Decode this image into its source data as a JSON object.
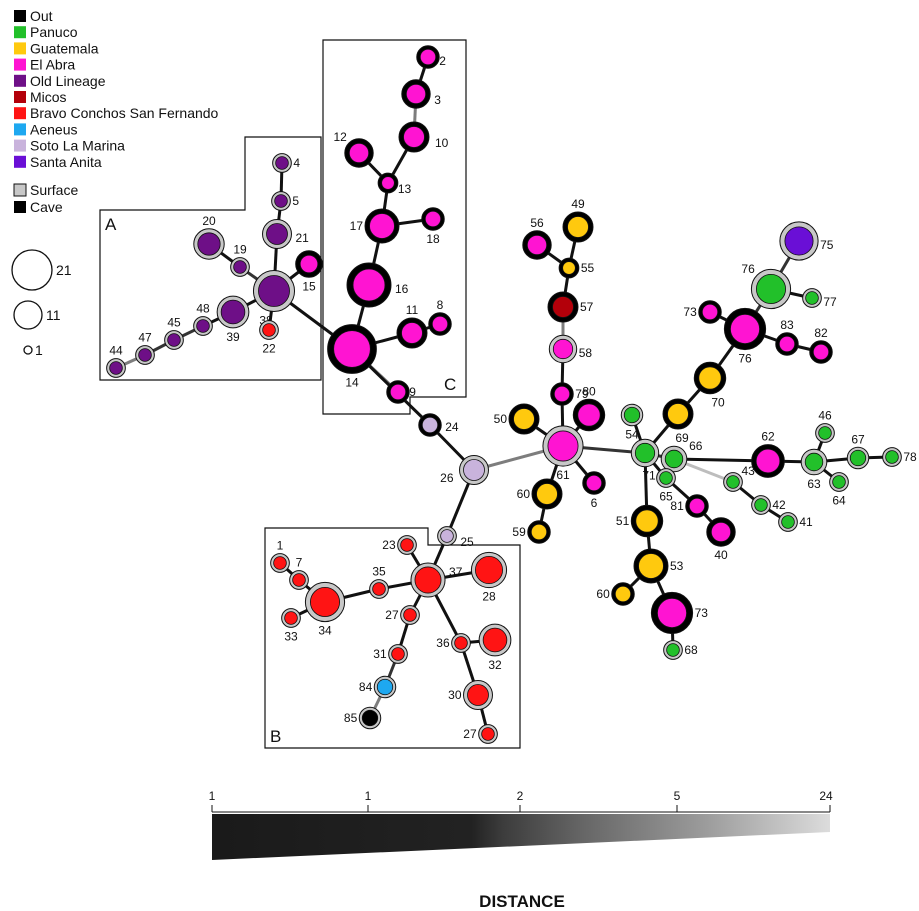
{
  "legend": {
    "lineages": [
      {
        "name": "Out",
        "color": "#000000"
      },
      {
        "name": "Panuco",
        "color": "#22c02a"
      },
      {
        "name": "Guatemala",
        "color": "#ffc90e"
      },
      {
        "name": "El Abra",
        "color": "#ff14d2"
      },
      {
        "name": "Old Lineage",
        "color": "#6e0f87"
      },
      {
        "name": "Micos",
        "color": "#b3000a"
      },
      {
        "name": "Bravo  Conchos San Fernando",
        "color": "#ff1414"
      },
      {
        "name": "Aeneus",
        "color": "#1ea8f0"
      },
      {
        "name": "Soto  La  Marina",
        "color": "#c9b3dc"
      },
      {
        "name": "Santa  Anita",
        "color": "#6a0fd6"
      }
    ],
    "habitat": [
      {
        "name": "Surface",
        "color": "#c8c8c8"
      },
      {
        "name": "Cave",
        "color": "#000000"
      }
    ],
    "sizes": [
      {
        "label": "21",
        "value": 21
      },
      {
        "label": "11",
        "value": 11
      },
      {
        "label": "1",
        "value": 1
      }
    ]
  },
  "regions": [
    {
      "label": "A"
    },
    {
      "label": "B"
    },
    {
      "label": "C"
    }
  ],
  "scale": {
    "ticks": [
      "1",
      "1",
      "2",
      "5",
      "24"
    ],
    "title": "DISTANCE"
  },
  "network": {
    "nodes": [
      {
        "id": "n2",
        "label": "2",
        "ring": "cave",
        "fill": "#ff14d2",
        "size": 2
      },
      {
        "id": "n3",
        "label": "3",
        "ring": "cave",
        "fill": "#ff14d2",
        "size": 4
      },
      {
        "id": "n10",
        "label": "10",
        "ring": "cave",
        "fill": "#ff14d2",
        "size": 5
      },
      {
        "id": "n12",
        "label": "12",
        "ring": "cave",
        "fill": "#ff14d2",
        "size": 4
      },
      {
        "id": "n13",
        "label": "13",
        "ring": "cave",
        "fill": "#ff14d2",
        "size": 1
      },
      {
        "id": "n17",
        "label": "17",
        "ring": "cave",
        "fill": "#ff14d2",
        "size": 8
      },
      {
        "id": "n18",
        "label": "18",
        "ring": "cave",
        "fill": "#ff14d2",
        "size": 2
      },
      {
        "id": "n16",
        "label": "16",
        "ring": "cave",
        "fill": "#ff14d2",
        "size": 15
      },
      {
        "id": "n11",
        "label": "11",
        "ring": "cave",
        "fill": "#ff14d2",
        "size": 5
      },
      {
        "id": "n8",
        "label": "8",
        "ring": "cave",
        "fill": "#ff14d2",
        "size": 2
      },
      {
        "id": "n14",
        "label": "14",
        "ring": "cave",
        "fill": "#ff14d2",
        "size": 21
      },
      {
        "id": "n9",
        "label": "9",
        "ring": "cave",
        "fill": "#ff14d2",
        "size": 2
      },
      {
        "id": "n4",
        "label": "4",
        "ring": "surface",
        "fill": "#6e0f87",
        "size": 1
      },
      {
        "id": "n5",
        "label": "5",
        "ring": "surface",
        "fill": "#6e0f87",
        "size": 1
      },
      {
        "id": "n21",
        "label": "21",
        "ring": "surface",
        "fill": "#6e0f87",
        "size": 5
      },
      {
        "id": "n20",
        "label": "20",
        "ring": "surface",
        "fill": "#6e0f87",
        "size": 6
      },
      {
        "id": "n19",
        "label": "19",
        "ring": "surface",
        "fill": "#6e0f87",
        "size": 1
      },
      {
        "id": "n15",
        "label": "15",
        "ring": "cave",
        "fill": "#ff14d2",
        "size": 3
      },
      {
        "id": "n38",
        "label": "38",
        "ring": "surface",
        "fill": "#6e0f87",
        "size": 14
      },
      {
        "id": "n39",
        "label": "39",
        "ring": "surface",
        "fill": "#6e0f87",
        "size": 7
      },
      {
        "id": "n48",
        "label": "48",
        "ring": "surface",
        "fill": "#6e0f87",
        "size": 1
      },
      {
        "id": "n45",
        "label": "45",
        "ring": "surface",
        "fill": "#6e0f87",
        "size": 1
      },
      {
        "id": "n47",
        "label": "47",
        "ring": "surface",
        "fill": "#6e0f87",
        "size": 1
      },
      {
        "id": "n44",
        "label": "44",
        "ring": "surface",
        "fill": "#6e0f87",
        "size": 1
      },
      {
        "id": "n22",
        "label": "22",
        "ring": "surface",
        "fill": "#ff1414",
        "size": 1
      },
      {
        "id": "n24",
        "label": "24",
        "ring": "cave",
        "fill": "#c9b3dc",
        "size": 2
      },
      {
        "id": "n26",
        "label": "26",
        "ring": "surface",
        "fill": "#c9b3dc",
        "size": 5
      },
      {
        "id": "n25",
        "label": "25",
        "ring": "surface",
        "fill": "#c9b3dc",
        "size": 1
      },
      {
        "id": "n37",
        "label": "37",
        "ring": "surface",
        "fill": "#ff1414",
        "size": 9
      },
      {
        "id": "n23",
        "label": "23",
        "ring": "surface",
        "fill": "#ff1414",
        "size": 1
      },
      {
        "id": "n28",
        "label": "28",
        "ring": "surface",
        "fill": "#ff1414",
        "size": 10
      },
      {
        "id": "n35",
        "label": "35",
        "ring": "surface",
        "fill": "#ff1414",
        "size": 1
      },
      {
        "id": "n34",
        "label": "34",
        "ring": "surface",
        "fill": "#ff1414",
        "size": 12
      },
      {
        "id": "n1",
        "label": "1",
        "ring": "surface",
        "fill": "#ff1414",
        "size": 1
      },
      {
        "id": "n7",
        "label": "7",
        "ring": "surface",
        "fill": "#ff1414",
        "size": 1
      },
      {
        "id": "n33",
        "label": "33",
        "ring": "surface",
        "fill": "#ff1414",
        "size": 1
      },
      {
        "id": "n27a",
        "label": "27",
        "ring": "surface",
        "fill": "#ff1414",
        "size": 1
      },
      {
        "id": "n31",
        "label": "31",
        "ring": "surface",
        "fill": "#ff1414",
        "size": 1
      },
      {
        "id": "n84",
        "label": "84",
        "ring": "surface",
        "fill": "#1ea8f0",
        "size": 2
      },
      {
        "id": "n85",
        "label": "85",
        "ring": "surface",
        "fill": "#000000",
        "size": 2
      },
      {
        "id": "n36",
        "label": "36",
        "ring": "surface",
        "fill": "#ff1414",
        "size": 1
      },
      {
        "id": "n32",
        "label": "32",
        "ring": "surface",
        "fill": "#ff1414",
        "size": 7
      },
      {
        "id": "n30",
        "label": "30",
        "ring": "surface",
        "fill": "#ff1414",
        "size": 5
      },
      {
        "id": "n27b",
        "label": "27",
        "ring": "surface",
        "fill": "#ff1414",
        "size": 1
      },
      {
        "id": "n61",
        "label": "61",
        "ring": "surface",
        "fill": "#ff14d2",
        "size": 13
      },
      {
        "id": "n79",
        "label": "79",
        "ring": "cave",
        "fill": "#ff14d2",
        "size": 2
      },
      {
        "id": "n58",
        "label": "58",
        "ring": "surface",
        "fill": "#ff14d2",
        "size": 4
      },
      {
        "id": "n57",
        "label": "57",
        "ring": "cave",
        "fill": "#b3000a",
        "size": 5
      },
      {
        "id": "n55",
        "label": "55",
        "ring": "cave",
        "fill": "#ffc90e",
        "size": 1
      },
      {
        "id": "n56",
        "label": "56",
        "ring": "cave",
        "fill": "#ff14d2",
        "size": 4
      },
      {
        "id": "n49",
        "label": "49",
        "ring": "cave",
        "fill": "#ffc90e",
        "size": 5
      },
      {
        "id": "n80",
        "label": "80",
        "ring": "cave",
        "fill": "#ff14d2",
        "size": 6
      },
      {
        "id": "n50",
        "label": "50",
        "ring": "cave",
        "fill": "#ffc90e",
        "size": 5
      },
      {
        "id": "n60a",
        "label": "60",
        "ring": "cave",
        "fill": "#ffc90e",
        "size": 5
      },
      {
        "id": "n59",
        "label": "59",
        "ring": "cave",
        "fill": "#ffc90e",
        "size": 2
      },
      {
        "id": "n6",
        "label": "6",
        "ring": "cave",
        "fill": "#ff14d2",
        "size": 2
      },
      {
        "id": "n71",
        "label": "71",
        "ring": "surface",
        "fill": "#22c02a",
        "size": 4
      },
      {
        "id": "n54",
        "label": "54",
        "ring": "surface",
        "fill": "#22c02a",
        "size": 2
      },
      {
        "id": "n69",
        "label": "69",
        "ring": "cave",
        "fill": "#ffc90e",
        "size": 5
      },
      {
        "id": "n70",
        "label": "70",
        "ring": "cave",
        "fill": "#ffc90e",
        "size": 6
      },
      {
        "id": "n76a",
        "label": "76",
        "ring": "cave",
        "fill": "#ff14d2",
        "size": 12
      },
      {
        "id": "n73a",
        "label": "73",
        "ring": "cave",
        "fill": "#ff14d2",
        "size": 2
      },
      {
        "id": "n83",
        "label": "83",
        "ring": "cave",
        "fill": "#ff14d2",
        "size": 2
      },
      {
        "id": "n82",
        "label": "82",
        "ring": "cave",
        "fill": "#ff14d2",
        "size": 2
      },
      {
        "id": "n76b",
        "label": "76",
        "ring": "surface",
        "fill": "#22c02a",
        "size": 12
      },
      {
        "id": "n77",
        "label": "77",
        "ring": "surface",
        "fill": "#22c02a",
        "size": 1
      },
      {
        "id": "n75",
        "label": "75",
        "ring": "surface",
        "fill": "#6a0fd6",
        "size": 11
      },
      {
        "id": "n66",
        "label": "66",
        "ring": "surface",
        "fill": "#22c02a",
        "size": 3
      },
      {
        "id": "n62",
        "label": "62",
        "ring": "cave",
        "fill": "#ff14d2",
        "size": 7
      },
      {
        "id": "n63",
        "label": "63",
        "ring": "surface",
        "fill": "#22c02a",
        "size": 3
      },
      {
        "id": "n46",
        "label": "46",
        "ring": "surface",
        "fill": "#22c02a",
        "size": 1
      },
      {
        "id": "n64",
        "label": "64",
        "ring": "surface",
        "fill": "#22c02a",
        "size": 1
      },
      {
        "id": "n67",
        "label": "67",
        "ring": "surface",
        "fill": "#22c02a",
        "size": 2
      },
      {
        "id": "n78",
        "label": "78",
        "ring": "surface",
        "fill": "#22c02a",
        "size": 1
      },
      {
        "id": "n43",
        "label": "43",
        "ring": "surface",
        "fill": "#22c02a",
        "size": 1
      },
      {
        "id": "n42",
        "label": "42",
        "ring": "surface",
        "fill": "#22c02a",
        "size": 1
      },
      {
        "id": "n41",
        "label": "41",
        "ring": "surface",
        "fill": "#22c02a",
        "size": 1
      },
      {
        "id": "n65",
        "label": "65",
        "ring": "surface",
        "fill": "#22c02a",
        "size": 1
      },
      {
        "id": "n81",
        "label": "81",
        "ring": "cave",
        "fill": "#ff14d2",
        "size": 2
      },
      {
        "id": "n40",
        "label": "40",
        "ring": "cave",
        "fill": "#ff14d2",
        "size": 4
      },
      {
        "id": "n51",
        "label": "51",
        "ring": "cave",
        "fill": "#ffc90e",
        "size": 6
      },
      {
        "id": "n53",
        "label": "53",
        "ring": "cave",
        "fill": "#ffc90e",
        "size": 8
      },
      {
        "id": "n60b",
        "label": "60",
        "ring": "cave",
        "fill": "#ffc90e",
        "size": 2
      },
      {
        "id": "n73b",
        "label": "73",
        "ring": "cave",
        "fill": "#ff14d2",
        "size": 12
      },
      {
        "id": "n68",
        "label": "68",
        "ring": "surface",
        "fill": "#22c02a",
        "size": 1
      }
    ],
    "edges": [
      [
        "n2",
        "n3",
        1
      ],
      [
        "n3",
        "n10",
        5
      ],
      [
        "n10",
        "n13",
        1
      ],
      [
        "n12",
        "n13",
        1
      ],
      [
        "n13",
        "n17",
        1
      ],
      [
        "n17",
        "n18",
        1
      ],
      [
        "n17",
        "n16",
        1
      ],
      [
        "n16",
        "n14",
        1
      ],
      [
        "n14",
        "n11",
        1
      ],
      [
        "n11",
        "n8",
        1
      ],
      [
        "n14",
        "n9",
        5
      ],
      [
        "n14",
        "n38",
        1
      ],
      [
        "n14",
        "n24",
        1
      ],
      [
        "n4",
        "n5",
        1
      ],
      [
        "n5",
        "n21",
        1
      ],
      [
        "n21",
        "n38",
        1
      ],
      [
        "n20",
        "n19",
        1
      ],
      [
        "n19",
        "n38",
        2
      ],
      [
        "n15",
        "n38",
        1
      ],
      [
        "n38",
        "n22",
        1
      ],
      [
        "n38",
        "n39",
        1
      ],
      [
        "n39",
        "n48",
        1
      ],
      [
        "n48",
        "n45",
        2
      ],
      [
        "n45",
        "n47",
        2
      ],
      [
        "n47",
        "n44",
        5
      ],
      [
        "n24",
        "n26",
        1
      ],
      [
        "n26",
        "n61",
        5
      ],
      [
        "n26",
        "n25",
        1
      ],
      [
        "n25",
        "n37",
        1
      ],
      [
        "n37",
        "n23",
        1
      ],
      [
        "n37",
        "n28",
        1
      ],
      [
        "n37",
        "n35",
        1
      ],
      [
        "n35",
        "n34",
        1
      ],
      [
        "n34",
        "n7",
        1
      ],
      [
        "n7",
        "n1",
        1
      ],
      [
        "n34",
        "n33",
        1
      ],
      [
        "n37",
        "n27a",
        1
      ],
      [
        "n27a",
        "n31",
        1
      ],
      [
        "n31",
        "n84",
        2
      ],
      [
        "n84",
        "n85",
        5
      ],
      [
        "n37",
        "n36",
        1
      ],
      [
        "n36",
        "n32",
        1
      ],
      [
        "n36",
        "n30",
        1
      ],
      [
        "n30",
        "n27b",
        1
      ],
      [
        "n61",
        "n79",
        1
      ],
      [
        "n79",
        "n58",
        1
      ],
      [
        "n58",
        "n57",
        5
      ],
      [
        "n57",
        "n55",
        1
      ],
      [
        "n55",
        "n56",
        1
      ],
      [
        "n55",
        "n49",
        1
      ],
      [
        "n61",
        "n80",
        1
      ],
      [
        "n61",
        "n50",
        1
      ],
      [
        "n61",
        "n60a",
        1
      ],
      [
        "n60a",
        "n59",
        1
      ],
      [
        "n61",
        "n6",
        1
      ],
      [
        "n61",
        "n71",
        2
      ],
      [
        "n71",
        "n54",
        1
      ],
      [
        "n71",
        "n69",
        1
      ],
      [
        "n69",
        "n70",
        1
      ],
      [
        "n70",
        "n76a",
        1
      ],
      [
        "n76a",
        "n73a",
        1
      ],
      [
        "n76a",
        "n83",
        1
      ],
      [
        "n83",
        "n82",
        1
      ],
      [
        "n76a",
        "n76b",
        2
      ],
      [
        "n76b",
        "n77",
        1
      ],
      [
        "n76b",
        "n75",
        2
      ],
      [
        "n71",
        "n66",
        2
      ],
      [
        "n66",
        "n62",
        1
      ],
      [
        "n62",
        "n63",
        1
      ],
      [
        "n63",
        "n46",
        1
      ],
      [
        "n63",
        "n64",
        1
      ],
      [
        "n63",
        "n67",
        1
      ],
      [
        "n67",
        "n78",
        1
      ],
      [
        "n66",
        "n43",
        24
      ],
      [
        "n43",
        "n42",
        1
      ],
      [
        "n42",
        "n41",
        1
      ],
      [
        "n71",
        "n65",
        1
      ],
      [
        "n65",
        "n81",
        1
      ],
      [
        "n81",
        "n40",
        1
      ],
      [
        "n71",
        "n51",
        1
      ],
      [
        "n51",
        "n53",
        1
      ],
      [
        "n53",
        "n60b",
        1
      ],
      [
        "n53",
        "n73b",
        1
      ],
      [
        "n73b",
        "n68",
        1
      ]
    ]
  }
}
